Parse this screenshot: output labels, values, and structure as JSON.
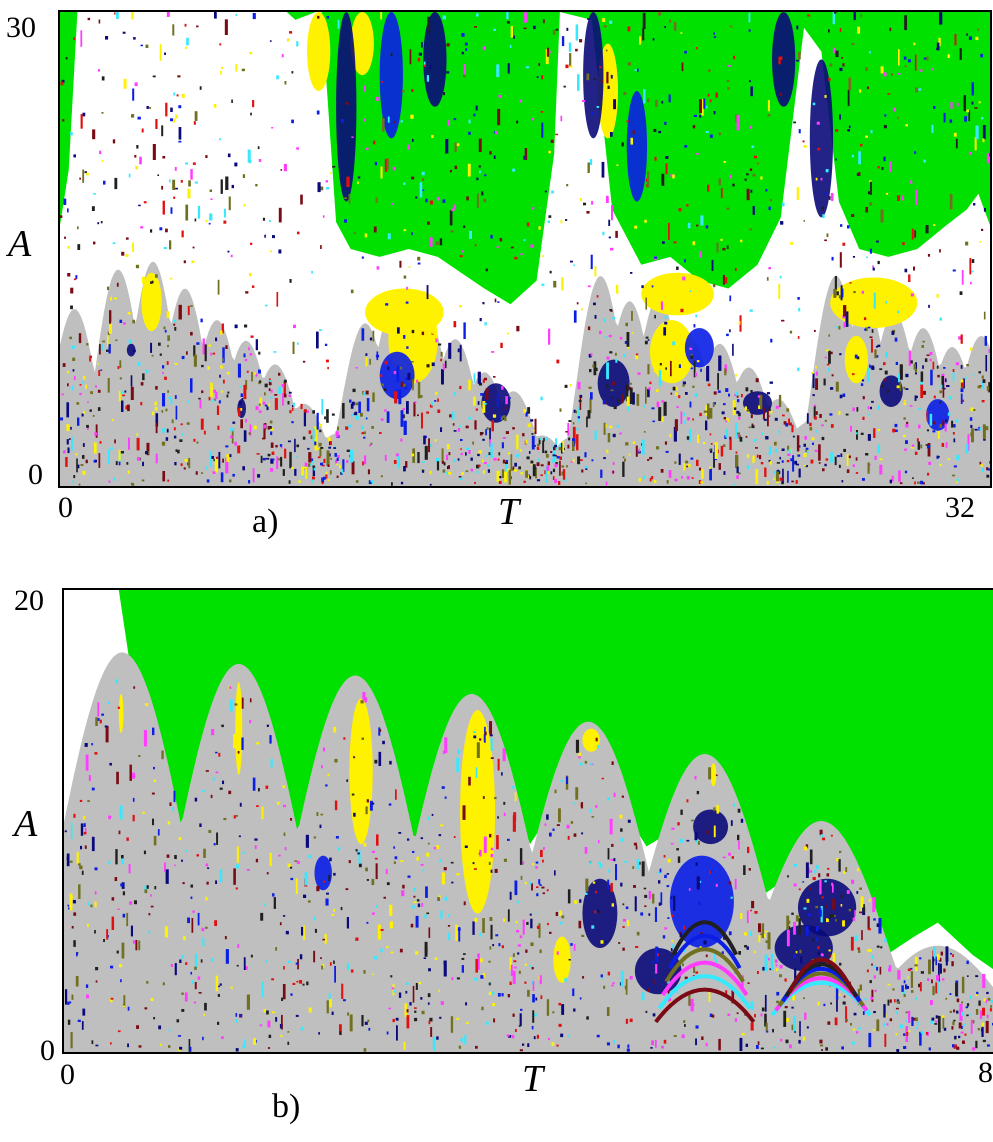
{
  "chart_data": [
    {
      "type": "heatmap",
      "panel_label": "a)",
      "xlabel": "T",
      "ylabel": "A",
      "x_ticks": [
        "0",
        "32"
      ],
      "y_ticks": [
        "0",
        "30"
      ],
      "xlim": [
        0,
        32
      ],
      "ylim": [
        0,
        30
      ],
      "peaks": [
        [
          0.5,
          11.2
        ],
        [
          2.0,
          13.7
        ],
        [
          3.2,
          14.2
        ],
        [
          4.3,
          12.5
        ],
        [
          5.4,
          10.5
        ],
        [
          6.4,
          9.2
        ],
        [
          7.4,
          7.7
        ],
        [
          8.4,
          5.2
        ],
        [
          9.5,
          3.3
        ],
        [
          10.5,
          10.3
        ],
        [
          11.5,
          11.5
        ],
        [
          12.6,
          11.0
        ],
        [
          13.6,
          9.3
        ],
        [
          14.6,
          7.2
        ],
        [
          15.6,
          6.0
        ],
        [
          16.6,
          3.2
        ],
        [
          17.6,
          3.1
        ],
        [
          18.6,
          13.3
        ],
        [
          19.6,
          11.7
        ],
        [
          20.6,
          12.0
        ],
        [
          21.7,
          9.3
        ],
        [
          22.7,
          9.0
        ],
        [
          23.7,
          7.5
        ],
        [
          24.7,
          5.5
        ],
        [
          25.7,
          4.0
        ],
        [
          26.7,
          13.3
        ],
        [
          27.7,
          11.8
        ],
        [
          28.7,
          11.0
        ],
        [
          29.7,
          10.0
        ],
        [
          30.7,
          8.8
        ],
        [
          31.7,
          9.5
        ]
      ],
      "green_lower": [
        [
          0.0,
          16.5
        ],
        [
          0.3,
          20.0
        ],
        [
          0.6,
          30.0
        ],
        [
          7.8,
          30.0
        ],
        [
          8.1,
          29.5
        ],
        [
          8.8,
          30.0
        ],
        [
          9.0,
          30.0
        ],
        [
          9.5,
          16.7
        ],
        [
          10.0,
          15.0
        ],
        [
          11.0,
          14.5
        ],
        [
          12.0,
          15.0
        ],
        [
          13.0,
          14.5
        ],
        [
          13.8,
          13.5
        ],
        [
          14.6,
          12.5
        ],
        [
          15.5,
          11.5
        ],
        [
          16.4,
          13.0
        ],
        [
          17.0,
          21.0
        ],
        [
          17.2,
          30.0
        ],
        [
          18.3,
          29.5
        ],
        [
          19.0,
          17.5
        ],
        [
          20.0,
          14.0
        ],
        [
          21.0,
          14.5
        ],
        [
          22.0,
          13.0
        ],
        [
          23.0,
          12.5
        ],
        [
          24.0,
          14.0
        ],
        [
          24.8,
          17.0
        ],
        [
          25.6,
          29.0
        ],
        [
          26.2,
          27.5
        ],
        [
          26.8,
          18.0
        ],
        [
          27.5,
          15.0
        ],
        [
          28.5,
          14.5
        ],
        [
          29.5,
          15.0
        ],
        [
          30.5,
          16.5
        ],
        [
          31.2,
          17.5
        ],
        [
          31.6,
          18.5
        ],
        [
          32.0,
          16.5
        ]
      ],
      "yellow_bands": [
        [
          2.8,
          9.8,
          3.5,
          13.5
        ],
        [
          10.5,
          9.5,
          13.2,
          12.5
        ],
        [
          11.3,
          6.5,
          13.0,
          12.0
        ],
        [
          20.0,
          10.8,
          22.5,
          13.5
        ],
        [
          20.3,
          6.5,
          21.8,
          10.5
        ],
        [
          26.5,
          10.0,
          29.5,
          13.2
        ],
        [
          27.0,
          6.5,
          27.8,
          9.5
        ],
        [
          8.5,
          25.0,
          9.3,
          30.0
        ],
        [
          10.0,
          26.0,
          10.8,
          30.0
        ],
        [
          18.5,
          22.0,
          19.2,
          28.0
        ]
      ],
      "navy_bands": [
        [
          9.5,
          18.0,
          10.2,
          30.0
        ],
        [
          11.0,
          22.0,
          11.8,
          30.0
        ],
        [
          12.5,
          24.0,
          13.3,
          30.0
        ],
        [
          18.0,
          22.0,
          18.7,
          30.0
        ],
        [
          19.5,
          18.0,
          20.2,
          25.0
        ],
        [
          24.5,
          24.0,
          25.3,
          30.0
        ],
        [
          25.8,
          17.0,
          26.6,
          27.0
        ],
        [
          11.0,
          5.5,
          12.2,
          8.5
        ],
        [
          14.5,
          4.0,
          15.5,
          6.5
        ],
        [
          18.5,
          5.0,
          19.6,
          8.0
        ],
        [
          21.5,
          7.5,
          22.5,
          10.0
        ],
        [
          23.5,
          4.5,
          24.5,
          6.0
        ],
        [
          28.2,
          5.0,
          29.0,
          7.0
        ],
        [
          29.8,
          3.5,
          30.6,
          5.5
        ],
        [
          2.3,
          8.2,
          2.6,
          9.0
        ],
        [
          6.1,
          4.3,
          6.4,
          5.5
        ]
      ]
    },
    {
      "type": "heatmap",
      "panel_label": "b)",
      "xlabel": "T",
      "ylabel": "A",
      "x_ticks": [
        "0",
        "8"
      ],
      "y_ticks": [
        "0",
        "20"
      ],
      "xlim": [
        0,
        8
      ],
      "ylim": [
        0,
        20
      ],
      "peaks": [
        [
          0.5,
          17.3
        ],
        [
          1.5,
          16.8
        ],
        [
          2.5,
          16.3
        ],
        [
          3.5,
          15.5
        ],
        [
          4.5,
          14.3
        ],
        [
          5.5,
          12.9
        ],
        [
          6.5,
          10.0
        ],
        [
          7.5,
          4.6
        ]
      ],
      "troughs": [
        [
          1.0,
          1.8
        ],
        [
          2.0,
          3.2
        ],
        [
          3.0,
          5.3
        ],
        [
          4.0,
          7.0
        ],
        [
          5.0,
          6.9
        ],
        [
          6.0,
          4.8
        ],
        [
          7.0,
          2.0
        ],
        [
          8.0,
          2.0
        ]
      ],
      "green_lower": [
        [
          0.47,
          20.0
        ],
        [
          0.58,
          16.3
        ],
        [
          0.8,
          8.5
        ],
        [
          1.0,
          3.7
        ],
        [
          1.25,
          8.0
        ],
        [
          1.45,
          14.3
        ],
        [
          1.55,
          14.8
        ],
        [
          1.75,
          10.0
        ],
        [
          2.0,
          5.2
        ],
        [
          2.2,
          9.5
        ],
        [
          2.45,
          14.5
        ],
        [
          2.55,
          15.0
        ],
        [
          2.8,
          11.5
        ],
        [
          3.0,
          7.3
        ],
        [
          3.2,
          10.5
        ],
        [
          3.45,
          14.3
        ],
        [
          3.6,
          14.3
        ],
        [
          3.8,
          11.5
        ],
        [
          4.0,
          9.0
        ],
        [
          4.2,
          10.5
        ],
        [
          4.5,
          13.5
        ],
        [
          4.6,
          13.3
        ],
        [
          4.8,
          10.5
        ],
        [
          5.0,
          8.9
        ],
        [
          5.2,
          9.5
        ],
        [
          5.5,
          12.3
        ],
        [
          5.65,
          11.5
        ],
        [
          5.85,
          8.5
        ],
        [
          6.0,
          6.8
        ],
        [
          6.2,
          7.5
        ],
        [
          6.5,
          9.7
        ],
        [
          6.75,
          8.5
        ],
        [
          7.0,
          4.0
        ],
        [
          7.3,
          5.0
        ],
        [
          7.5,
          5.6
        ],
        [
          7.8,
          4.2
        ],
        [
          8.0,
          3.5
        ]
      ],
      "yellow_bands": [
        [
          0.47,
          13.8,
          0.51,
          15.5
        ],
        [
          1.47,
          12.0,
          1.53,
          16.0
        ],
        [
          2.45,
          9.0,
          2.65,
          15.3
        ],
        [
          3.4,
          6.0,
          3.7,
          14.8
        ],
        [
          4.45,
          13.0,
          4.6,
          14.0
        ],
        [
          4.2,
          3.0,
          4.35,
          5.0
        ],
        [
          5.55,
          11.5,
          5.6,
          12.5
        ]
      ],
      "navy_bands": [
        [
          4.45,
          4.5,
          4.75,
          7.5
        ],
        [
          5.2,
          4.5,
          5.75,
          8.5
        ],
        [
          5.4,
          9.0,
          5.7,
          10.5
        ],
        [
          4.9,
          2.5,
          5.3,
          4.5
        ],
        [
          2.15,
          7.0,
          2.3,
          8.5
        ],
        [
          6.3,
          5.0,
          6.8,
          7.5
        ],
        [
          6.1,
          3.5,
          6.6,
          5.5
        ]
      ],
      "peak_half_width": 0.5
    }
  ]
}
